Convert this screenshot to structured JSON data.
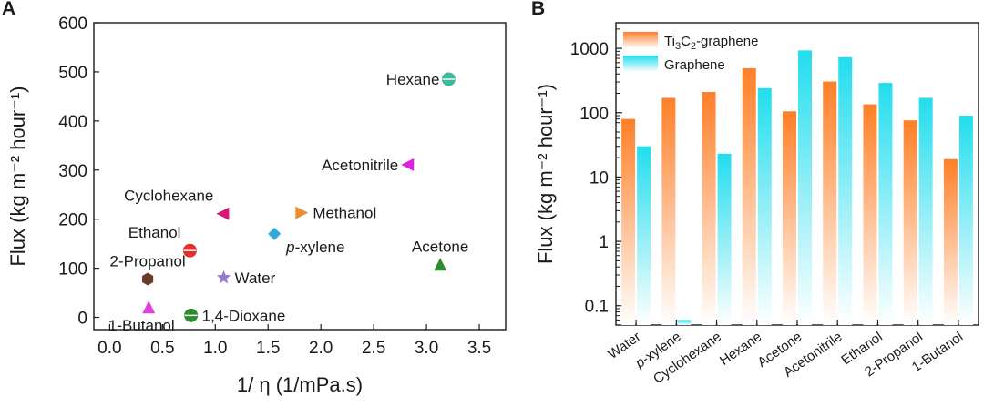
{
  "panels": {
    "a_label": "A",
    "b_label": "B"
  },
  "chart_data": [
    {
      "type": "scatter",
      "xlabel": "1/ η  (1/mPa.s)",
      "ylabel": "Flux (kg m⁻² hour⁻¹)",
      "xlim": [
        -0.15,
        3.75
      ],
      "ylim": [
        -25,
        600
      ],
      "xticks": [
        0.0,
        0.5,
        1.0,
        1.5,
        2.0,
        2.5,
        3.0,
        3.5
      ],
      "yticks": [
        0,
        100,
        200,
        300,
        400,
        500,
        600
      ],
      "grid": false,
      "points": [
        {
          "label": "Hexane",
          "x": 3.21,
          "y": 485,
          "color": "#3cb89a",
          "marker": "circle",
          "label_side": "left"
        },
        {
          "label": "Acetonitrile",
          "x": 2.82,
          "y": 311,
          "color": "#e020e0",
          "marker": "triangle-left",
          "label_side": "left"
        },
        {
          "label": "Methanol",
          "x": 1.82,
          "y": 213,
          "color": "#e89030",
          "marker": "triangle-right",
          "label_side": "right"
        },
        {
          "label": "Cyclohexane",
          "x": 1.07,
          "y": 211,
          "color": "#d81878",
          "marker": "triangle-left",
          "label_side": "upper-left"
        },
        {
          "label": "p-xylene",
          "x": 1.56,
          "y": 170,
          "color": "#30a8d8",
          "marker": "diamond",
          "label_side": "lower-right"
        },
        {
          "label": "Acetone",
          "x": 3.13,
          "y": 108,
          "color": "#2e8b2e",
          "marker": "triangle-up",
          "label_side": "above"
        },
        {
          "label": "Ethanol",
          "x": 0.76,
          "y": 136,
          "color": "#e03030",
          "marker": "circle",
          "label_side": "upper-left"
        },
        {
          "label": "2-Propanol",
          "x": 0.36,
          "y": 78,
          "color": "#6a3c28",
          "marker": "hexagon",
          "label_side": "above"
        },
        {
          "label": "Water",
          "x": 1.08,
          "y": 81,
          "color": "#9a7ad0",
          "marker": "star",
          "label_side": "right"
        },
        {
          "label": "1-Butanol",
          "x": 0.37,
          "y": 21,
          "color": "#e040e0",
          "marker": "triangle-up",
          "label_side": "below"
        },
        {
          "label": "1,4-Dioxane",
          "x": 0.77,
          "y": 4,
          "color": "#2e8b2e",
          "marker": "circle",
          "label_side": "right"
        }
      ]
    },
    {
      "type": "bar",
      "scale": "log",
      "xlabel": "",
      "ylabel": "Flux (kg m⁻² hour⁻¹)",
      "ylim": [
        0.05,
        2500
      ],
      "yticks": [
        0.1,
        1,
        10,
        100,
        1000
      ],
      "ytick_labels": [
        "0.1",
        "1",
        "10",
        "100",
        "1000"
      ],
      "categories": [
        "Water",
        "p-xylene",
        "Cyclohexane",
        "Hexane",
        "Acetone",
        "Acetonitrile",
        "Ethanol",
        "2-Propanol",
        "1-Butanol"
      ],
      "series": [
        {
          "name": "Ti3C2-graphene",
          "values": [
            80,
            170,
            210,
            490,
            105,
            305,
            135,
            76,
            19
          ],
          "color": "#ff7f27"
        },
        {
          "name": "Graphene",
          "values": [
            30,
            0.06,
            23,
            240,
            930,
            730,
            290,
            170,
            90
          ],
          "color": "#22ddee"
        }
      ],
      "legend": "top-left",
      "grid": false
    }
  ]
}
